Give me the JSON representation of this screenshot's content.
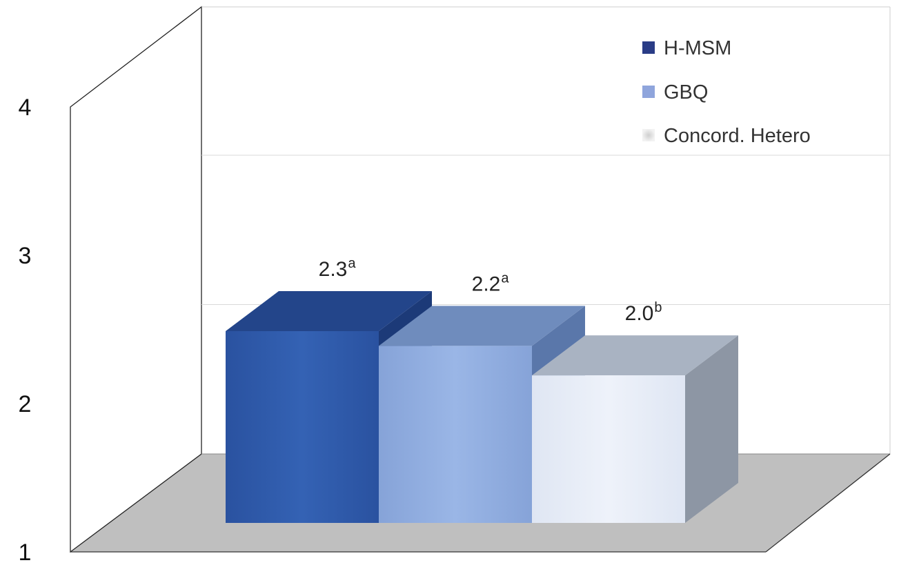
{
  "chart_data": {
    "type": "bar",
    "three_d": true,
    "categories": [
      "H-MSM",
      "GBQ",
      "Concord. Hetero"
    ],
    "values": [
      2.3,
      2.2,
      2.0
    ],
    "superscripts": [
      "a",
      "a",
      "b"
    ],
    "value_labels": [
      "2.3",
      "2.2",
      "2.0"
    ],
    "ylim": [
      1,
      4
    ],
    "yticks": [
      "1",
      "2",
      "3",
      "4"
    ],
    "grid": true,
    "legend_position": "top-right",
    "title": "",
    "xlabel": "",
    "ylabel": "",
    "colors": {
      "series": [
        "#2e5aa8",
        "#8eacdf",
        "#e4ebf6"
      ],
      "legend": [
        "#2a3c86",
        "#8fa5dc",
        "#dcdcdc"
      ],
      "floor": "#bfbfbf"
    }
  }
}
